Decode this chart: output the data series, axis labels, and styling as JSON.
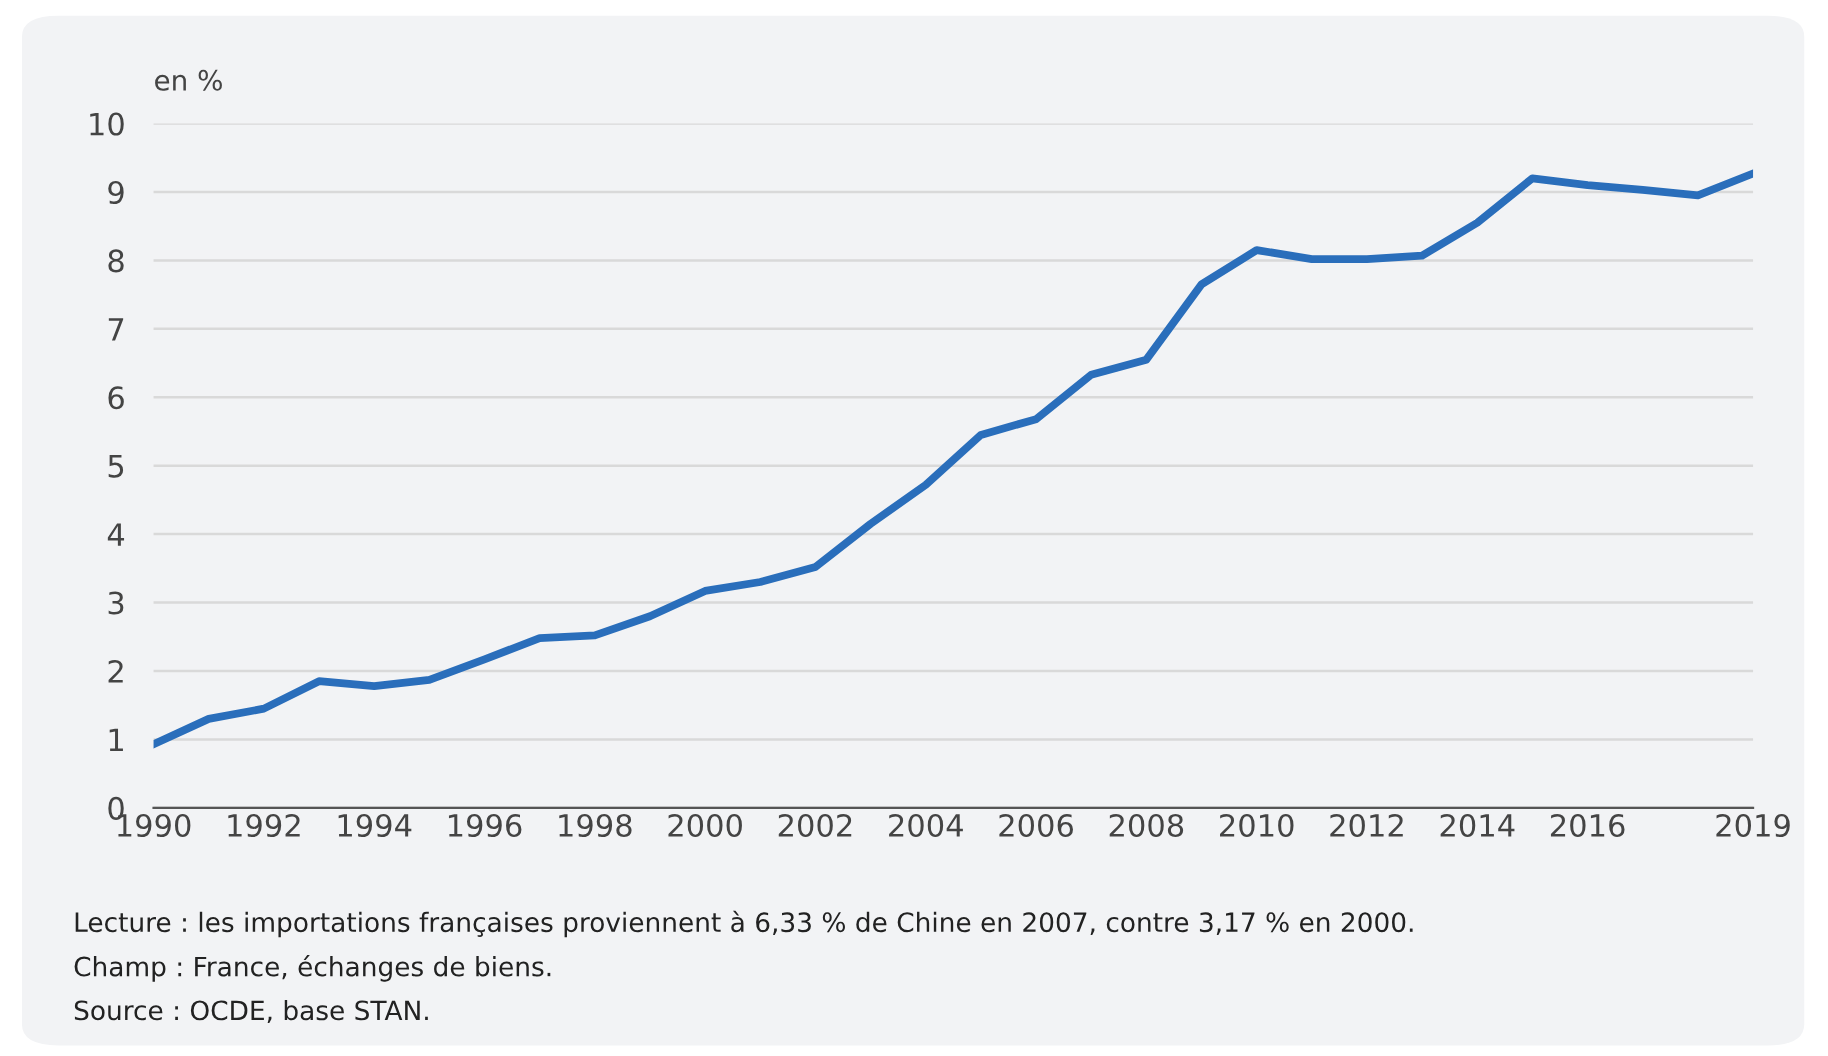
{
  "chart_data": {
    "type": "line",
    "ylabel": "en %",
    "x": [
      1990,
      1991,
      1992,
      1993,
      1994,
      1995,
      1996,
      1997,
      1998,
      1999,
      2000,
      2001,
      2002,
      2003,
      2004,
      2005,
      2006,
      2007,
      2008,
      2009,
      2010,
      2011,
      2012,
      2013,
      2014,
      2015,
      2016,
      2017,
      2018,
      2019
    ],
    "series": [
      {
        "color": "#2a6ebb",
        "values": [
          0.93,
          1.3,
          1.45,
          1.85,
          1.78,
          1.87,
          2.17,
          2.48,
          2.52,
          2.8,
          3.17,
          3.3,
          3.52,
          4.15,
          4.72,
          5.45,
          5.68,
          6.33,
          6.55,
          7.65,
          8.15,
          8.02,
          8.02,
          8.07,
          8.55,
          9.2,
          9.1,
          9.03,
          8.95,
          9.27
        ]
      }
    ],
    "xlim": [
      1990,
      2019
    ],
    "xticks": [
      1990,
      1992,
      1994,
      1996,
      1998,
      2000,
      2002,
      2004,
      2006,
      2008,
      2010,
      2012,
      2014,
      2016,
      2019
    ],
    "ylim": [
      0,
      10
    ],
    "yticks": [
      0,
      1,
      2,
      3,
      4,
      5,
      6,
      7,
      8,
      9,
      10
    ],
    "grid": "y",
    "marker": "none",
    "line_style": "solid",
    "annotations": [
      "Lecture : les importations françaises proviennent à 6,33 % de Chine en 2007, contre 3,17 % en 2000.",
      "Champ : France, échanges de biens.",
      "Source : OCDE, base STAN."
    ]
  }
}
